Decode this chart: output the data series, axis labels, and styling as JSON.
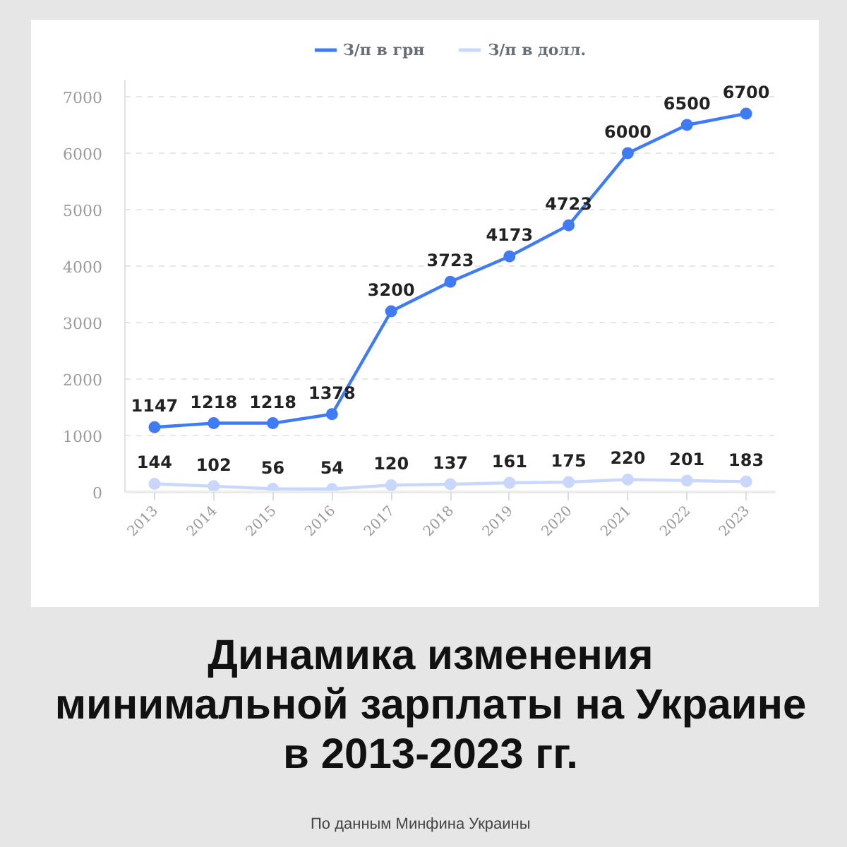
{
  "chart_data": {
    "type": "line",
    "title": "Динамика изменения\nминимальной зарплаты на Украине\nв 2013-2023 гг.",
    "annotations": [
      "По данным Минфина Украины"
    ],
    "categories": [
      "2013",
      "2014",
      "2015",
      "2016",
      "2017",
      "2018",
      "2019",
      "2020",
      "2021",
      "2022",
      "2023"
    ],
    "series": [
      {
        "name": "З/п в грн",
        "color": "#3f7bf6",
        "values": [
          1147,
          1218,
          1218,
          1378,
          3200,
          3723,
          4173,
          4723,
          6000,
          6500,
          6700
        ]
      },
      {
        "name": "З/п в долл.",
        "color": "#c8d7fb",
        "values": [
          144,
          102,
          56,
          54,
          120,
          137,
          161,
          175,
          220,
          201,
          183
        ]
      }
    ],
    "ylim": [
      0,
      7300
    ],
    "yticks": [
      0,
      1000,
      2000,
      3000,
      4000,
      5000,
      6000,
      7000
    ],
    "grid": "y",
    "legend": "top",
    "data_labels": true,
    "marker": "circle",
    "line_style": "solid"
  }
}
